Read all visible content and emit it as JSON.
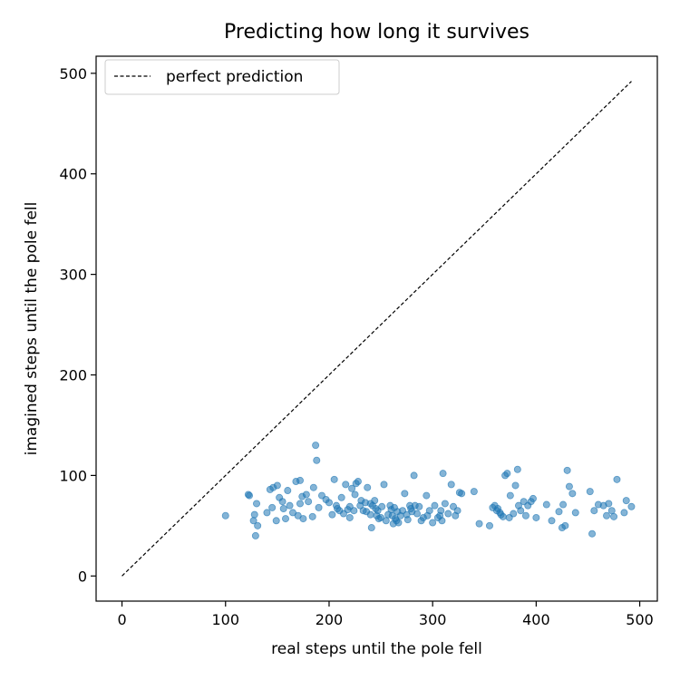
{
  "chart_data": {
    "type": "scatter",
    "title": "Predicting how long it survives",
    "xlabel": "real steps until the pole fell",
    "ylabel": "imagined steps until the pole fell",
    "xlim": [
      -25,
      517
    ],
    "ylim": [
      -25,
      517
    ],
    "xticks": [
      0,
      100,
      200,
      300,
      400,
      500
    ],
    "yticks": [
      0,
      100,
      200,
      300,
      400,
      500
    ],
    "grid": false,
    "legend": {
      "position": "top-left",
      "entries": [
        "perfect prediction"
      ]
    },
    "reference_line": {
      "name": "perfect prediction",
      "x": [
        0,
        492
      ],
      "y": [
        0,
        492
      ],
      "style": "dashed",
      "color": "#000000"
    },
    "series": [
      {
        "color": "#1f77b4",
        "alpha": 0.55,
        "x": [
          100,
          122,
          123,
          127,
          128,
          129,
          130,
          131,
          140,
          143,
          145,
          146,
          149,
          150,
          152,
          155,
          156,
          158,
          160,
          162,
          165,
          168,
          170,
          172,
          172,
          174,
          175,
          178,
          180,
          184,
          185,
          187,
          188,
          190,
          193,
          197,
          200,
          203,
          205,
          207,
          208,
          210,
          212,
          214,
          216,
          218,
          220,
          220,
          222,
          224,
          225,
          226,
          228,
          230,
          231,
          233,
          235,
          236,
          237,
          240,
          240,
          241,
          242,
          244,
          245,
          246,
          247,
          248,
          250,
          251,
          253,
          255,
          257,
          259,
          260,
          261,
          262,
          263,
          264,
          265,
          266,
          267,
          269,
          271,
          273,
          275,
          276,
          278,
          279,
          280,
          282,
          283,
          285,
          287,
          289,
          291,
          294,
          295,
          297,
          300,
          302,
          305,
          307,
          308,
          309,
          310,
          312,
          315,
          318,
          320,
          322,
          324,
          326,
          328,
          340,
          345,
          355,
          358,
          360,
          362,
          363,
          365,
          366,
          368,
          370,
          372,
          374,
          375,
          378,
          380,
          382,
          383,
          385,
          388,
          390,
          392,
          395,
          397,
          400,
          410,
          415,
          422,
          425,
          426,
          428,
          430,
          432,
          435,
          438,
          452,
          454,
          456,
          460,
          465,
          468,
          470,
          473,
          475,
          478,
          485,
          487,
          492
        ],
        "y": [
          60,
          81,
          80,
          55,
          61,
          40,
          72,
          50,
          63,
          86,
          68,
          88,
          55,
          90,
          78,
          74,
          67,
          57,
          85,
          70,
          63,
          94,
          60,
          72,
          95,
          79,
          57,
          81,
          74,
          59,
          88,
          130,
          115,
          68,
          80,
          76,
          73,
          61,
          96,
          70,
          67,
          65,
          78,
          62,
          91,
          66,
          69,
          58,
          87,
          65,
          81,
          92,
          94,
          70,
          75,
          65,
          73,
          64,
          88,
          61,
          72,
          48,
          70,
          75,
          67,
          60,
          65,
          57,
          58,
          69,
          91,
          55,
          61,
          70,
          66,
          60,
          52,
          68,
          57,
          55,
          64,
          53,
          60,
          65,
          82,
          61,
          56,
          70,
          67,
          64,
          100,
          70,
          62,
          69,
          55,
          58,
          80,
          60,
          65,
          53,
          70,
          58,
          60,
          65,
          55,
          102,
          72,
          62,
          91,
          69,
          60,
          65,
          83,
          82,
          84,
          52,
          50,
          68,
          70,
          65,
          67,
          63,
          61,
          59,
          100,
          102,
          58,
          80,
          62,
          90,
          106,
          70,
          65,
          74,
          60,
          70,
          74,
          77,
          58,
          71,
          55,
          64,
          48,
          71,
          50,
          105,
          89,
          82,
          63,
          84,
          42,
          65,
          71,
          70,
          60,
          72,
          65,
          59,
          96,
          63,
          75,
          69
        ]
      }
    ]
  }
}
